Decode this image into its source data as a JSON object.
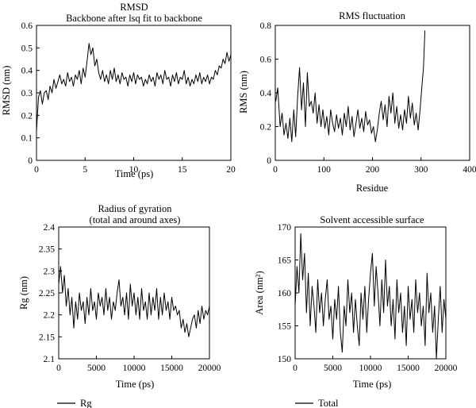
{
  "chart_data": [
    {
      "id": "rmsd",
      "type": "line",
      "title_lines": [
        "RMSD",
        "Backbone after lsq fit to backbone"
      ],
      "xlabel": "Time (ps)",
      "ylabel": "RMSD (nm)",
      "xlim": [
        0,
        20
      ],
      "ylim": [
        0,
        0.6
      ],
      "xticks": [
        0,
        5,
        10,
        15,
        20
      ],
      "yticks": [
        0,
        0.1,
        0.2,
        0.3,
        0.4,
        0.5,
        0.6
      ],
      "grid": false,
      "x": [
        0,
        0.2,
        0.4,
        0.6,
        0.8,
        1,
        1.2,
        1.4,
        1.6,
        1.8,
        2,
        2.2,
        2.4,
        2.6,
        2.8,
        3,
        3.2,
        3.4,
        3.6,
        3.8,
        4,
        4.2,
        4.4,
        4.6,
        4.8,
        5,
        5.2,
        5.4,
        5.6,
        5.8,
        6,
        6.2,
        6.4,
        6.6,
        6.8,
        7,
        7.2,
        7.4,
        7.6,
        7.8,
        8,
        8.2,
        8.4,
        8.6,
        8.8,
        9,
        9.2,
        9.4,
        9.6,
        9.8,
        10,
        10.2,
        10.4,
        10.6,
        10.8,
        11,
        11.2,
        11.4,
        11.6,
        11.8,
        12,
        12.2,
        12.4,
        12.6,
        12.8,
        13,
        13.2,
        13.4,
        13.6,
        13.8,
        14,
        14.2,
        14.4,
        14.6,
        14.8,
        15,
        15.2,
        15.4,
        15.6,
        15.8,
        16,
        16.2,
        16.4,
        16.6,
        16.8,
        17,
        17.2,
        17.4,
        17.6,
        17.8,
        18,
        18.2,
        18.4,
        18.6,
        18.8,
        19,
        19.2,
        19.4,
        19.6,
        19.8,
        20
      ],
      "y": [
        0.13,
        0.28,
        0.31,
        0.25,
        0.3,
        0.31,
        0.27,
        0.33,
        0.3,
        0.36,
        0.32,
        0.35,
        0.38,
        0.34,
        0.36,
        0.33,
        0.39,
        0.35,
        0.37,
        0.33,
        0.38,
        0.36,
        0.4,
        0.34,
        0.41,
        0.37,
        0.44,
        0.52,
        0.47,
        0.5,
        0.42,
        0.45,
        0.39,
        0.36,
        0.4,
        0.35,
        0.38,
        0.34,
        0.4,
        0.36,
        0.41,
        0.35,
        0.38,
        0.34,
        0.39,
        0.36,
        0.37,
        0.33,
        0.38,
        0.35,
        0.39,
        0.34,
        0.38,
        0.36,
        0.37,
        0.33,
        0.36,
        0.34,
        0.38,
        0.35,
        0.37,
        0.33,
        0.39,
        0.36,
        0.38,
        0.34,
        0.4,
        0.36,
        0.37,
        0.33,
        0.38,
        0.35,
        0.39,
        0.34,
        0.37,
        0.36,
        0.4,
        0.34,
        0.37,
        0.33,
        0.36,
        0.34,
        0.38,
        0.35,
        0.39,
        0.34,
        0.37,
        0.35,
        0.38,
        0.34,
        0.37,
        0.36,
        0.4,
        0.38,
        0.42,
        0.41,
        0.45,
        0.43,
        0.48,
        0.44,
        0.47
      ]
    },
    {
      "id": "rmsf",
      "type": "line",
      "title_lines": [
        "RMS fluctuation"
      ],
      "xlabel": "Residue",
      "ylabel": "RMS (nm)",
      "xlim": [
        0,
        400
      ],
      "ylim": [
        0,
        0.8
      ],
      "xticks": [
        0,
        100,
        200,
        300,
        400
      ],
      "yticks": [
        0,
        0.2,
        0.4,
        0.6,
        0.8
      ],
      "grid": false,
      "x": [
        1,
        5,
        10,
        14,
        18,
        22,
        26,
        30,
        34,
        38,
        42,
        46,
        50,
        54,
        58,
        62,
        66,
        70,
        74,
        78,
        82,
        86,
        90,
        94,
        98,
        102,
        106,
        110,
        114,
        118,
        122,
        126,
        130,
        134,
        138,
        142,
        146,
        150,
        154,
        158,
        162,
        166,
        170,
        174,
        178,
        182,
        186,
        190,
        194,
        198,
        202,
        206,
        210,
        214,
        218,
        222,
        226,
        230,
        234,
        238,
        242,
        246,
        250,
        254,
        258,
        262,
        266,
        270,
        274,
        278,
        282,
        286,
        290,
        294,
        298,
        302,
        305,
        308
      ],
      "y": [
        0.35,
        0.43,
        0.2,
        0.28,
        0.15,
        0.22,
        0.13,
        0.25,
        0.11,
        0.3,
        0.14,
        0.38,
        0.55,
        0.3,
        0.46,
        0.2,
        0.52,
        0.32,
        0.35,
        0.28,
        0.4,
        0.22,
        0.33,
        0.2,
        0.3,
        0.19,
        0.26,
        0.15,
        0.3,
        0.22,
        0.17,
        0.27,
        0.19,
        0.25,
        0.15,
        0.28,
        0.2,
        0.32,
        0.18,
        0.26,
        0.14,
        0.22,
        0.3,
        0.19,
        0.25,
        0.17,
        0.29,
        0.21,
        0.24,
        0.16,
        0.2,
        0.11,
        0.18,
        0.28,
        0.35,
        0.24,
        0.33,
        0.2,
        0.38,
        0.28,
        0.4,
        0.22,
        0.32,
        0.19,
        0.27,
        0.18,
        0.3,
        0.22,
        0.38,
        0.25,
        0.34,
        0.21,
        0.28,
        0.18,
        0.3,
        0.45,
        0.55,
        0.77
      ]
    },
    {
      "id": "rg",
      "type": "line",
      "title_lines": [
        "Radius of gyration",
        "(total and around axes)"
      ],
      "xlabel": "Time (ps)",
      "ylabel": "Rg (nm)",
      "xlim": [
        0,
        20000
      ],
      "ylim": [
        2.1,
        2.4
      ],
      "xticks": [
        0,
        5000,
        10000,
        15000,
        20000
      ],
      "yticks": [
        2.1,
        2.15,
        2.2,
        2.25,
        2.3,
        2.35,
        2.4
      ],
      "ytick_labels": [
        "2.1",
        "2.15",
        "2.2",
        "2.25",
        "2.3",
        "2.35",
        "2.4"
      ],
      "grid": false,
      "legend": [
        "Rg"
      ],
      "x": [
        0,
        250,
        500,
        750,
        1000,
        1250,
        1500,
        1750,
        2000,
        2250,
        2500,
        2750,
        3000,
        3250,
        3500,
        3750,
        4000,
        4250,
        4500,
        4750,
        5000,
        5250,
        5500,
        5750,
        6000,
        6250,
        6500,
        6750,
        7000,
        7250,
        7500,
        7750,
        8000,
        8250,
        8500,
        8750,
        9000,
        9250,
        9500,
        9750,
        10000,
        10250,
        10500,
        10750,
        11000,
        11250,
        11500,
        11750,
        12000,
        12250,
        12500,
        12750,
        13000,
        13250,
        13500,
        13750,
        14000,
        14250,
        14500,
        14750,
        15000,
        15250,
        15500,
        15750,
        16000,
        16250,
        16500,
        16750,
        17000,
        17250,
        17500,
        17750,
        18000,
        18250,
        18500,
        18750,
        19000,
        19250,
        19500,
        19750,
        20000
      ],
      "y": [
        2.27,
        2.31,
        2.25,
        2.29,
        2.22,
        2.26,
        2.2,
        2.24,
        2.17,
        2.23,
        2.19,
        2.25,
        2.21,
        2.23,
        2.18,
        2.24,
        2.2,
        2.26,
        2.21,
        2.23,
        2.19,
        2.25,
        2.22,
        2.24,
        2.2,
        2.26,
        2.21,
        2.24,
        2.19,
        2.23,
        2.21,
        2.25,
        2.28,
        2.22,
        2.24,
        2.2,
        2.25,
        2.19,
        2.27,
        2.22,
        2.25,
        2.2,
        2.24,
        2.19,
        2.26,
        2.21,
        2.23,
        2.19,
        2.25,
        2.2,
        2.24,
        2.21,
        2.26,
        2.19,
        2.24,
        2.2,
        2.25,
        2.21,
        2.23,
        2.19,
        2.24,
        2.21,
        2.22,
        2.2,
        2.21,
        2.17,
        2.19,
        2.16,
        2.18,
        2.15,
        2.17,
        2.19,
        2.2,
        2.17,
        2.21,
        2.18,
        2.22,
        2.19,
        2.21,
        2.2,
        2.22
      ]
    },
    {
      "id": "sas",
      "type": "line",
      "title_lines": [
        "Solvent accessible surface"
      ],
      "xlabel": "Time (ps)",
      "ylabel": "Area (nm²)",
      "xlim": [
        0,
        20000
      ],
      "ylim": [
        150,
        170
      ],
      "xticks": [
        0,
        5000,
        10000,
        15000,
        20000
      ],
      "yticks": [
        150,
        155,
        160,
        165,
        170
      ],
      "grid": false,
      "legend": [
        "Total"
      ],
      "x": [
        0,
        250,
        500,
        750,
        1000,
        1250,
        1500,
        1750,
        2000,
        2250,
        2500,
        2750,
        3000,
        3250,
        3500,
        3750,
        4000,
        4250,
        4500,
        4750,
        5000,
        5250,
        5500,
        5750,
        6000,
        6250,
        6500,
        6750,
        7000,
        7250,
        7500,
        7750,
        8000,
        8250,
        8500,
        8750,
        9000,
        9250,
        9500,
        9750,
        10000,
        10250,
        10500,
        10750,
        11000,
        11250,
        11500,
        11750,
        12000,
        12250,
        12500,
        12750,
        13000,
        13250,
        13500,
        13750,
        14000,
        14250,
        14500,
        14750,
        15000,
        15250,
        15500,
        15750,
        16000,
        16250,
        16500,
        16750,
        17000,
        17250,
        17500,
        17750,
        18000,
        18250,
        18500,
        18750,
        19000,
        19250,
        19500,
        19750,
        20000
      ],
      "y": [
        158,
        164,
        160,
        169,
        162,
        166,
        157,
        163,
        155,
        161,
        158,
        154,
        162,
        157,
        160,
        155,
        159,
        162,
        156,
        158,
        153,
        159,
        156,
        161,
        154,
        151,
        158,
        155,
        162,
        157,
        160,
        154,
        159,
        155,
        152,
        160,
        156,
        161,
        154,
        159,
        163,
        166,
        158,
        164,
        160,
        155,
        162,
        157,
        165,
        158,
        161,
        155,
        159,
        153,
        162,
        157,
        160,
        154,
        158,
        152,
        161,
        156,
        159,
        154,
        162,
        157,
        160,
        155,
        158,
        152,
        163,
        157,
        160,
        154,
        158,
        150,
        156,
        161,
        154,
        159,
        156
      ]
    }
  ]
}
